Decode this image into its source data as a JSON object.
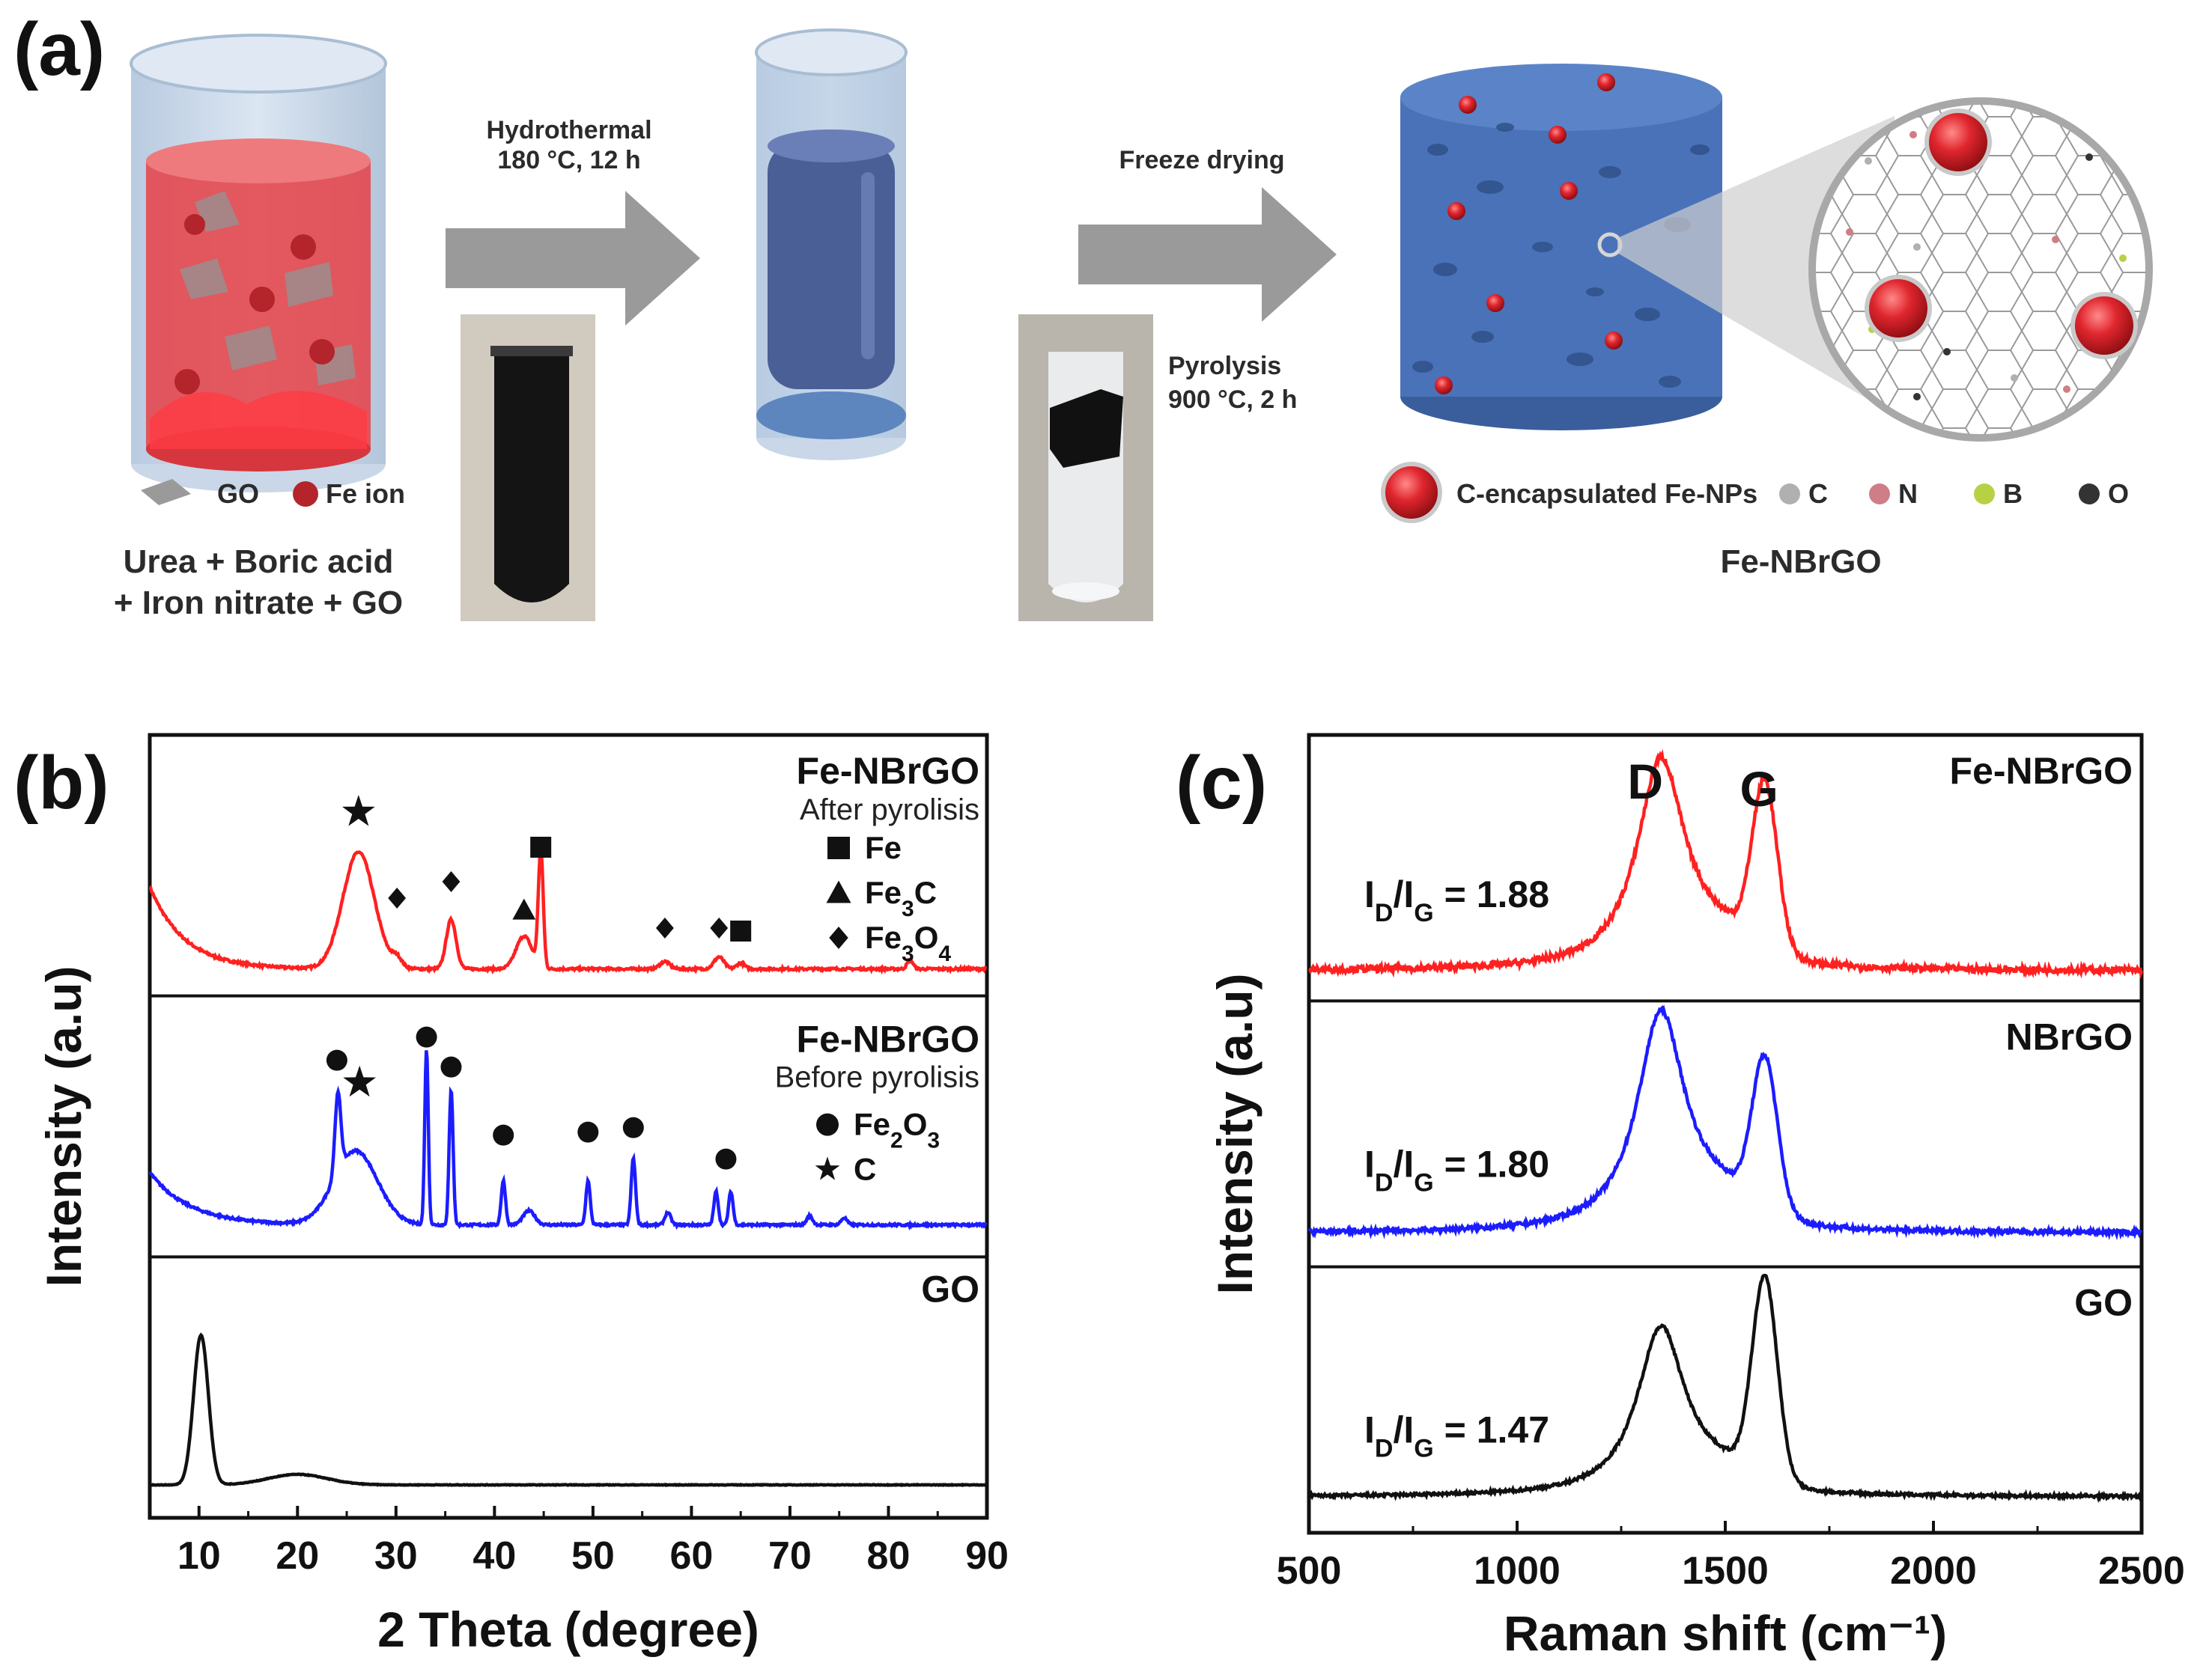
{
  "panels": {
    "a": "(a)",
    "b": "(b)",
    "c": "(c)"
  },
  "scheme": {
    "step1": {
      "line1": "Hydrothermal",
      "line2": "180 °C, 12 h"
    },
    "step2": "Freeze drying",
    "step3": {
      "line1": "Pyrolysis",
      "line2": "900 °C, 2 h"
    },
    "legend_go": "GO",
    "legend_fe_ion": "Fe ion",
    "precursors": {
      "line1": "Urea + Boric acid",
      "line2": "+ Iron nitrate + GO"
    },
    "product_legend": {
      "np": "C-encapsulated Fe-NPs",
      "c": "C",
      "n": "N",
      "b": "B",
      "o": "O"
    },
    "product_name": "Fe-NBrGO",
    "colors": {
      "solution": "#e4484f",
      "fe_ion": "#b3242b",
      "aerogel": "#4a72b8",
      "arrow": "#9a9a9a",
      "atom_c": "#b0b0b0",
      "atom_n": "#cf7d86",
      "atom_b": "#b7d145",
      "atom_o": "#333333"
    }
  },
  "chart_data": [
    {
      "type": "line",
      "panel": "b",
      "xlabel": "2 Theta (degree)",
      "ylabel": "Intensity (a.u)",
      "xlim": [
        5,
        90
      ],
      "xticks": [
        10,
        20,
        30,
        40,
        50,
        60,
        70,
        80,
        90
      ],
      "series": [
        {
          "name": "Fe-NBrGO",
          "condition": "After pyrolisis",
          "color": "#ff2020",
          "peaks": [
            [
              26.2,
              0.78,
              1.6
            ],
            [
              35.6,
              0.33,
              0.5
            ],
            [
              43.0,
              0.22,
              0.8
            ],
            [
              44.7,
              0.78,
              0.25
            ],
            [
              30.1,
              0.06,
              0.5
            ],
            [
              57.3,
              0.05,
              0.5
            ],
            [
              62.8,
              0.08,
              0.5
            ],
            [
              65.0,
              0.04,
              0.4
            ],
            [
              82.2,
              0.06,
              0.3
            ]
          ],
          "legend": [
            {
              "marker": "square",
              "label": "Fe"
            },
            {
              "marker": "triangle",
              "label": "Fe3C"
            },
            {
              "marker": "diamond",
              "label": "Fe3O4"
            }
          ]
        },
        {
          "name": "Fe-NBrGO",
          "condition": "Before pyrolisis",
          "color": "#1c1cff",
          "peaks": [
            [
              24.1,
              0.45,
              0.3
            ],
            [
              25.9,
              0.42,
              2.2
            ],
            [
              33.1,
              1.0,
              0.18
            ],
            [
              35.6,
              0.77,
              0.2
            ],
            [
              40.9,
              0.25,
              0.22
            ],
            [
              43.5,
              0.08,
              0.6
            ],
            [
              49.5,
              0.25,
              0.22
            ],
            [
              54.1,
              0.38,
              0.22
            ],
            [
              57.6,
              0.07,
              0.3
            ],
            [
              62.5,
              0.19,
              0.22
            ],
            [
              64.0,
              0.19,
              0.22
            ],
            [
              72.0,
              0.05,
              0.3
            ],
            [
              75.5,
              0.04,
              0.3
            ]
          ],
          "legend": [
            {
              "marker": "circle",
              "label": "Fe2O3"
            },
            {
              "marker": "star",
              "label": "C"
            }
          ]
        },
        {
          "name": "GO",
          "condition": "",
          "color": "#111111",
          "peaks": [
            [
              10.2,
              1.0,
              0.75
            ],
            [
              20.0,
              0.07,
              3.0
            ]
          ]
        }
      ]
    },
    {
      "type": "line",
      "panel": "c",
      "xlabel": "Raman shift (cm⁻¹)",
      "ylabel": "Intensity (a.u)",
      "xlim": [
        500,
        2500
      ],
      "xticks": [
        500,
        1000,
        1500,
        2000,
        2500
      ],
      "band_labels": [
        "D",
        "G"
      ],
      "series": [
        {
          "name": "Fe-NBrGO",
          "color": "#ff2020",
          "id_ig_label": "ID/IG = 1.88",
          "id_ig": 1.88,
          "d_pos": 1345,
          "g_pos": 1595,
          "d_height": 1.0,
          "g_height": 0.78
        },
        {
          "name": "NBrGO",
          "color": "#1c1cff",
          "id_ig_label": "ID/IG = 1.80",
          "id_ig": 1.8,
          "d_pos": 1345,
          "g_pos": 1595,
          "d_height": 1.0,
          "g_height": 0.68
        },
        {
          "name": "GO",
          "color": "#111111",
          "id_ig_label": "ID/IG = 1.47",
          "id_ig": 1.47,
          "d_pos": 1345,
          "g_pos": 1595,
          "d_height": 0.84,
          "g_height": 1.0
        }
      ]
    }
  ]
}
